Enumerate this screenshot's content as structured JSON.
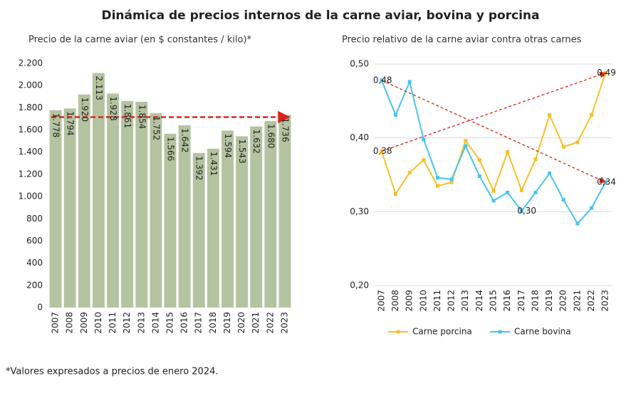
{
  "title": "Dinámica de precios internos de la carne aviar, bovina y porcina",
  "footnote": "*Valores expresados a precios de enero 2024.",
  "chart_data": [
    {
      "type": "bar",
      "title": "Precio de la carne aviar (en $ constantes / kilo)*",
      "categories": [
        "2007",
        "2008",
        "2009",
        "2010",
        "2011",
        "2012",
        "2013",
        "2014",
        "2015",
        "2016",
        "2017",
        "2018",
        "2019",
        "2020",
        "2021",
        "2022",
        "2023"
      ],
      "values": [
        1778,
        1794,
        1920,
        2113,
        1928,
        1861,
        1854,
        1752,
        1566,
        1642,
        1392,
        1431,
        1594,
        1543,
        1632,
        1680,
        1736
      ],
      "value_labels": [
        "1.778",
        "1.794",
        "1.920",
        "2.113",
        "1.928",
        "1.861",
        "1.854",
        "1.752",
        "1.566",
        "1.642",
        "1.392",
        "1.431",
        "1.594",
        "1.543",
        "1.632",
        "1.680",
        "1.736"
      ],
      "color": "#b4c3a0",
      "reference_line": 1716,
      "reference_color": "#d9261c",
      "ylim": [
        0,
        2200
      ],
      "yticks": [
        0,
        200,
        400,
        600,
        800,
        {
          "value": 1000,
          "label": "1.000"
        },
        {
          "value": 1200,
          "label": "1.200"
        },
        {
          "value": 1400,
          "label": "1.400"
        },
        {
          "value": 1600,
          "label": "1.600"
        },
        {
          "value": 1800,
          "label": "1.800"
        },
        {
          "value": 2000,
          "label": "2.000"
        },
        {
          "value": 2200,
          "label": "2.200"
        }
      ],
      "grid": false
    },
    {
      "type": "line",
      "title": "Precio relativo de la carne aviar contra otras carnes",
      "categories": [
        "2007",
        "2008",
        "2009",
        "2010",
        "2011",
        "2012",
        "2013",
        "2014",
        "2015",
        "2016",
        "2017",
        "2018",
        "2019",
        "2020",
        "2021",
        "2022",
        "2023"
      ],
      "series": [
        {
          "name": "Carne porcina",
          "color": "#f5c02a",
          "values": [
            0.382,
            0.324,
            0.353,
            0.37,
            0.335,
            0.34,
            0.396,
            0.37,
            0.328,
            0.381,
            0.329,
            0.371,
            0.431,
            0.388,
            0.394,
            0.431,
            0.488
          ],
          "value_labels": [
            "0,38",
            null,
            null,
            null,
            null,
            null,
            null,
            null,
            null,
            null,
            null,
            null,
            null,
            null,
            null,
            null,
            "0,49"
          ]
        },
        {
          "name": "Carne bovina",
          "color": "#4cc3ea",
          "values": [
            0.478,
            0.431,
            0.476,
            0.398,
            0.346,
            0.344,
            0.389,
            0.348,
            0.315,
            0.326,
            0.301,
            0.326,
            0.352,
            0.316,
            0.284,
            0.305,
            0.34
          ],
          "value_labels": [
            "0,48",
            null,
            null,
            null,
            null,
            null,
            null,
            null,
            null,
            null,
            "0,30",
            null,
            null,
            null,
            null,
            null,
            "0,34"
          ]
        }
      ],
      "trend_color": "#d9261c",
      "ylim": [
        0.2,
        0.5
      ],
      "yticks": [
        {
          "value": 0.2,
          "label": "0,20"
        },
        {
          "value": 0.3,
          "label": "0,30"
        },
        {
          "value": 0.4,
          "label": "0,40"
        },
        {
          "value": 0.5,
          "label": "0,50"
        }
      ],
      "grid": true
    }
  ]
}
